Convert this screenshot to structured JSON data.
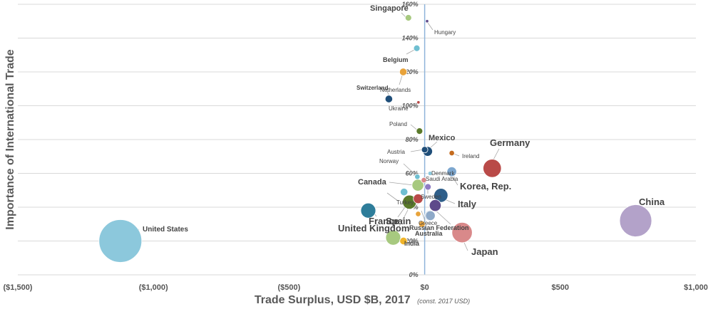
{
  "chart_data": {
    "type": "scatter",
    "title": "",
    "xlabel": "Trade Surplus, USD $B, 2017",
    "xlabel_note": "(const. 2017 USD)",
    "ylabel": "Importance of International Trade",
    "xlim": [
      -1500,
      1000
    ],
    "ylim": [
      0,
      160
    ],
    "x_ticks": [
      -1500,
      -1000,
      -500,
      0,
      500,
      1000
    ],
    "x_tick_labels": [
      "($1,500)",
      "($1,000)",
      "($500)",
      "$0",
      "$500",
      "$1,000"
    ],
    "y_ticks": [
      0,
      20,
      40,
      60,
      80,
      100,
      120,
      140,
      160
    ],
    "y_tick_labels": [
      "0%",
      "20%",
      "40%",
      "60%",
      "80%",
      "100%",
      "120%",
      "140%",
      "160%"
    ],
    "grid": "horizontal",
    "legend": "none",
    "marker_note": "bubble size = relative trade volume",
    "points": [
      {
        "label": "United States",
        "x": -1122,
        "y": 20,
        "size": 20,
        "color": "#8cc8dc"
      },
      {
        "label": "China",
        "x": 778,
        "y": 32,
        "size": 15,
        "color": "#b3a2c9"
      },
      {
        "label": "Germany",
        "x": 249,
        "y": 63,
        "size": 8.5,
        "color": "#b94a48"
      },
      {
        "label": "Japan",
        "x": 138,
        "y": 25,
        "size": 9.5,
        "color": "#d9898a"
      },
      {
        "label": "Korea, Rep.",
        "x": 60,
        "y": 47,
        "size": 6.5,
        "color": "#2f5f8a"
      },
      {
        "label": "Italy",
        "x": 39,
        "y": 41,
        "size": 5.5,
        "color": "#5e4a8a"
      },
      {
        "label": "France",
        "x": -208,
        "y": 38,
        "size": 7,
        "color": "#2e7d9a"
      },
      {
        "label": "Spain",
        "x": -56,
        "y": 43,
        "size": 6.5,
        "color": "#5a7a2a"
      },
      {
        "label": "United Kingdom",
        "x": -116,
        "y": 22,
        "size": 7,
        "color": "#a7c97f"
      },
      {
        "label": "India",
        "x": -78,
        "y": 20,
        "size": 3.5,
        "color": "#f0b429"
      },
      {
        "label": "Canada",
        "x": -25,
        "y": 53,
        "size": 5.5,
        "color": "#a7c97f"
      },
      {
        "label": "Mexico",
        "x": 11,
        "y": 73,
        "size": 4.5,
        "color": "#1f4e79"
      },
      {
        "label": "Russian Federation",
        "x": 20,
        "y": 35,
        "size": 5,
        "color": "#8ea9c8"
      },
      {
        "label": "Australia",
        "x": -10,
        "y": 30,
        "size": 3,
        "color": "#e8a33b"
      },
      {
        "label": "Singapore",
        "x": -60,
        "y": 152,
        "size": 3,
        "color": "#a7c97f"
      },
      {
        "label": "Hungary",
        "x": 9,
        "y": 150,
        "size": 1.5,
        "color": "#5e4a8a"
      },
      {
        "label": "Belgium",
        "x": -29,
        "y": 134,
        "size": 3,
        "color": "#6fbfd1"
      },
      {
        "label": "Netherlands",
        "x": -79,
        "y": 120,
        "size": 3.5,
        "color": "#e8a33b"
      },
      {
        "label": "Switzerland",
        "x": -132,
        "y": 104,
        "size": 3.5,
        "color": "#1f4e79"
      },
      {
        "label": "Ukraine",
        "x": -23,
        "y": 102,
        "size": 1.5,
        "color": "#b94a48"
      },
      {
        "label": "Poland",
        "x": -19,
        "y": 85,
        "size": 3,
        "color": "#5a7a2a"
      },
      {
        "label": "Austria",
        "x": 0,
        "y": 74,
        "size": 3,
        "color": "#1f4e79"
      },
      {
        "label": "Ireland",
        "x": 100,
        "y": 72,
        "size": 2.5,
        "color": "#c46b1e"
      },
      {
        "label": "Norway",
        "x": -27,
        "y": 58,
        "size": 2.5,
        "color": "#6fbfd1"
      },
      {
        "label": "Denmark",
        "x": 20,
        "y": 60,
        "size": 2,
        "color": "#8cc8dc"
      },
      {
        "label": "Saudi Arabia",
        "x": -3,
        "y": 56,
        "size": 2.5,
        "color": "#d9898a"
      },
      {
        "label": "Sweden",
        "x": 12,
        "y": 52,
        "size": 3,
        "color": "#8e7cc3"
      },
      {
        "label": "Turkey",
        "x": -76,
        "y": 49,
        "size": 3.5,
        "color": "#6fbfd1"
      },
      {
        "label": "Greece",
        "x": -24,
        "y": 36,
        "size": 2.5,
        "color": "#e8a33b"
      },
      {
        "label": "Korea dot",
        "x": 100,
        "y": 61,
        "size": 4.5,
        "color": "#7da7cf",
        "hidden_label": true
      },
      {
        "label": "Saudi dot",
        "x": -24,
        "y": 45,
        "size": 4.5,
        "color": "#b94a48",
        "hidden_label": true
      },
      {
        "label": "Greece dot",
        "x": 21,
        "y": 35,
        "size": 4.5,
        "color": "#8ea9c8",
        "hidden_label": true
      }
    ],
    "labels": [
      {
        "text": "United States",
        "weight": "bold",
        "size": 10
      },
      {
        "text": "China",
        "weight": "bold",
        "size": 13
      },
      {
        "text": "Germany",
        "weight": "bold",
        "size": 13
      },
      {
        "text": "Japan",
        "weight": "bold",
        "size": 13
      },
      {
        "text": "Korea, Rep.",
        "weight": "bold",
        "size": 13
      },
      {
        "text": "Italy",
        "weight": "bold",
        "size": 13
      },
      {
        "text": "France",
        "weight": "bold",
        "size": 13
      },
      {
        "text": "Spain",
        "weight": "bold",
        "size": 13
      },
      {
        "text": "United Kingdom",
        "weight": "bold",
        "size": 13
      },
      {
        "text": "India",
        "weight": "bold",
        "size": 9
      },
      {
        "text": "Canada",
        "weight": "bold",
        "size": 11
      },
      {
        "text": "Mexico",
        "weight": "bold",
        "size": 11
      },
      {
        "text": "Russian Federation",
        "weight": "bold",
        "size": 9
      },
      {
        "text": "Australia",
        "weight": "bold",
        "size": 9
      },
      {
        "text": "Singapore",
        "weight": "bold",
        "size": 11
      },
      {
        "text": "Hungary",
        "weight": "normal",
        "size": 8
      },
      {
        "text": "Belgium",
        "weight": "bold",
        "size": 9
      },
      {
        "text": "Netherlands",
        "weight": "normal",
        "size": 8
      },
      {
        "text": "Switzerland",
        "weight": "bold",
        "size": 8
      },
      {
        "text": "Ukraine",
        "weight": "normal",
        "size": 8
      },
      {
        "text": "Poland",
        "weight": "normal",
        "size": 8
      },
      {
        "text": "Austria",
        "weight": "normal",
        "size": 8
      },
      {
        "text": "Ireland",
        "weight": "normal",
        "size": 8
      },
      {
        "text": "Norway",
        "weight": "normal",
        "size": 8
      },
      {
        "text": "Denmark",
        "weight": "normal",
        "size": 8
      },
      {
        "text": "Saudi Arabia",
        "weight": "normal",
        "size": 8
      },
      {
        "text": "Sweden",
        "weight": "normal",
        "size": 8
      },
      {
        "text": "Turkey",
        "weight": "normal",
        "size": 8
      },
      {
        "text": "Greece",
        "weight": "normal",
        "size": 8
      }
    ]
  }
}
